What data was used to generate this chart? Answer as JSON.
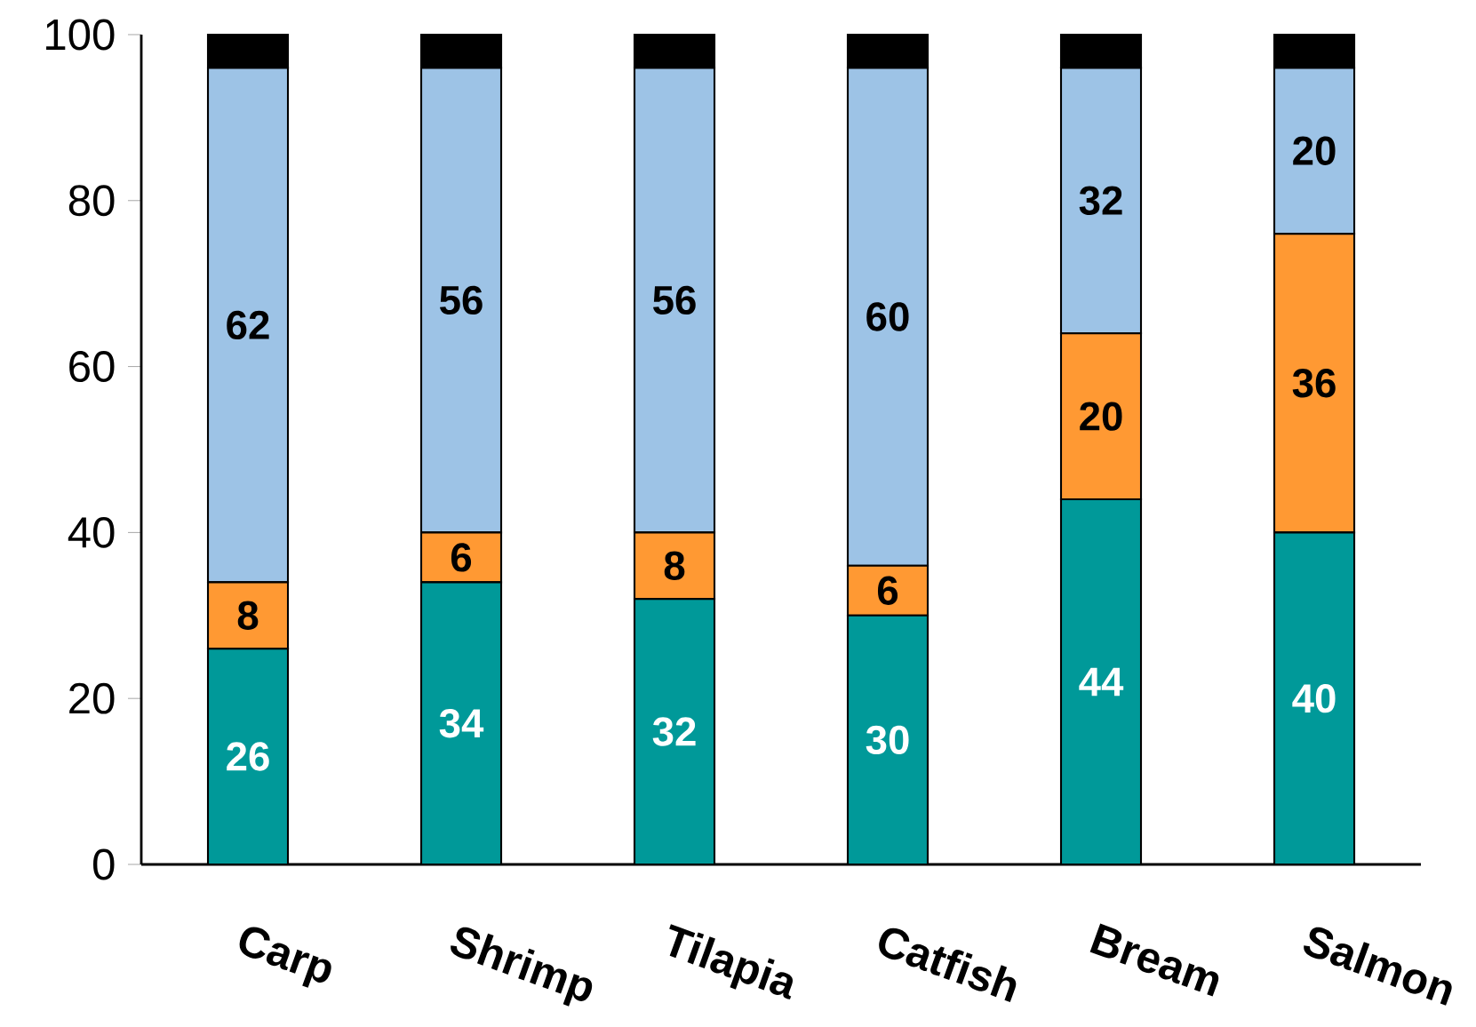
{
  "chart_data": {
    "type": "bar",
    "stacked": true,
    "categories": [
      "Carp",
      "Shrimp",
      "Tilapia",
      "Catfish",
      "Bream",
      "Salmon"
    ],
    "series": [
      {
        "color": "#009999",
        "values": [
          26,
          34,
          32,
          30,
          44,
          40
        ],
        "value_labels": [
          "26",
          "34",
          "32",
          "30",
          "44",
          "40"
        ]
      },
      {
        "color": "#ff9933",
        "values": [
          8,
          6,
          8,
          6,
          20,
          36
        ],
        "value_labels": [
          "8",
          "6",
          "8",
          "6",
          "20",
          "36"
        ]
      },
      {
        "color": "#9dc3e6",
        "values": [
          62,
          56,
          56,
          60,
          32,
          20
        ],
        "value_labels": [
          "62",
          "56",
          "56",
          "60",
          "32",
          "20"
        ]
      },
      {
        "color": "#000000",
        "values": [
          4,
          4,
          4,
          4,
          4,
          4
        ]
      }
    ],
    "ylim": [
      0,
      100
    ],
    "yticks": [
      0,
      20,
      40,
      60,
      80,
      100
    ]
  }
}
